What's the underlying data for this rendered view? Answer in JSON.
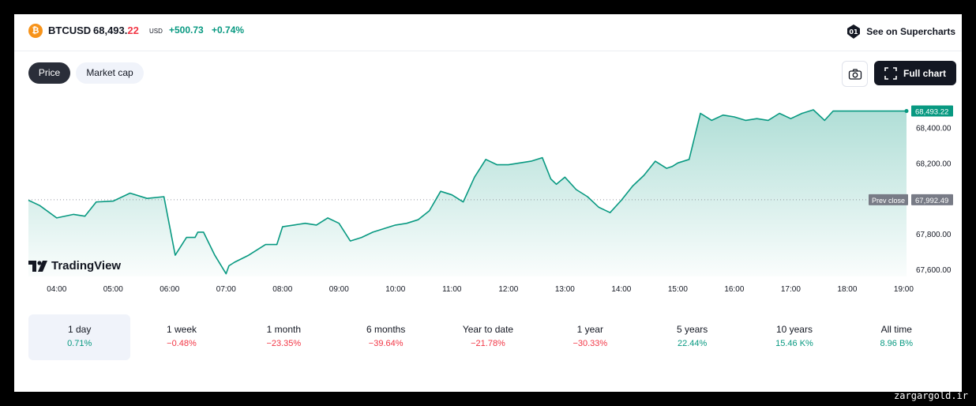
{
  "header": {
    "symbol": "BTCUSD",
    "price_main": "68,493.",
    "price_dec": "22",
    "currency": "USD",
    "change": "+500.73",
    "change_pct": "+0.74%",
    "supercharts_label": "See on Supercharts"
  },
  "tabs": [
    "Price",
    "Market cap"
  ],
  "full_chart_label": "Full chart",
  "brand": "TradingView",
  "chart_data": {
    "type": "area",
    "x_ticks": [
      "04:00",
      "05:00",
      "06:00",
      "07:00",
      "08:00",
      "09:00",
      "10:00",
      "11:00",
      "12:00",
      "13:00",
      "14:00",
      "15:00",
      "16:00",
      "17:00",
      "18:00",
      "19:00"
    ],
    "y_ticks": [
      "67,600.00",
      "67,800.00",
      "68,000.00",
      "68,200.00",
      "68,400.00"
    ],
    "y_tick_values": [
      67600,
      67800,
      68000,
      68200,
      68400
    ],
    "ylim": [
      67560,
      68540
    ],
    "last_price_label": "68,493.22",
    "last_price": 68493.22,
    "prev_close_label": "Prev close",
    "prev_close_value": "67,992.49",
    "prev_close": 67992.49,
    "x": [
      3.5,
      3.7,
      4.0,
      4.3,
      4.5,
      4.7,
      5.0,
      5.3,
      5.6,
      5.9,
      6.1,
      6.3,
      6.45,
      6.5,
      6.6,
      6.8,
      7.0,
      7.05,
      7.15,
      7.4,
      7.7,
      7.9,
      8.0,
      8.2,
      8.4,
      8.6,
      8.8,
      9.0,
      9.2,
      9.4,
      9.6,
      9.8,
      10.0,
      10.2,
      10.4,
      10.6,
      10.8,
      11.0,
      11.2,
      11.4,
      11.6,
      11.8,
      12.0,
      12.2,
      12.4,
      12.6,
      12.75,
      12.85,
      13.0,
      13.2,
      13.4,
      13.6,
      13.8,
      14.0,
      14.2,
      14.4,
      14.6,
      14.8,
      14.9,
      15.0,
      15.2,
      15.4,
      15.6,
      15.8,
      16.0,
      16.2,
      16.4,
      16.6,
      16.8,
      17.0,
      17.2,
      17.4,
      17.6,
      17.75,
      17.8,
      17.85,
      18.0,
      18.2,
      18.4,
      18.6,
      18.8,
      19.0,
      19.05
    ],
    "values": [
      67990,
      67960,
      67890,
      67910,
      67900,
      67980,
      67985,
      68030,
      68000,
      68010,
      67680,
      67780,
      67780,
      67810,
      67810,
      67680,
      67575,
      67620,
      67640,
      67680,
      67740,
      67740,
      67840,
      67850,
      67860,
      67850,
      67890,
      67860,
      67760,
      67780,
      67810,
      67830,
      67850,
      67860,
      67880,
      67930,
      68040,
      68020,
      67980,
      68120,
      68220,
      68190,
      68190,
      68200,
      68210,
      68230,
      68110,
      68080,
      68120,
      68050,
      68010,
      67950,
      67920,
      67990,
      68070,
      68130,
      68210,
      68170,
      68180,
      68200,
      68220,
      68480,
      68440,
      68470,
      68460,
      68440,
      68450,
      68440,
      68480,
      68450,
      68480,
      68500,
      68440,
      68493,
      68493,
      68493,
      68493,
      68493,
      68493,
      68493,
      68493,
      68493,
      68493
    ]
  },
  "periods": [
    {
      "label": "1 day",
      "value": "0.71%",
      "sign": "pos"
    },
    {
      "label": "1 week",
      "value": "−0.48%",
      "sign": "neg"
    },
    {
      "label": "1 month",
      "value": "−23.35%",
      "sign": "neg"
    },
    {
      "label": "6 months",
      "value": "−39.64%",
      "sign": "neg"
    },
    {
      "label": "Year to date",
      "value": "−21.78%",
      "sign": "neg"
    },
    {
      "label": "1 year",
      "value": "−30.33%",
      "sign": "neg"
    },
    {
      "label": "5 years",
      "value": "22.44%",
      "sign": "pos"
    },
    {
      "label": "10 years",
      "value": "15.46 K%",
      "sign": "pos"
    },
    {
      "label": "All time",
      "value": "8.96 B%",
      "sign": "pos"
    }
  ],
  "watermark": "zargargold.ir",
  "colors": {
    "up": "#089981",
    "down": "#f23645",
    "accent": "#f7931a",
    "dark": "#131722"
  }
}
